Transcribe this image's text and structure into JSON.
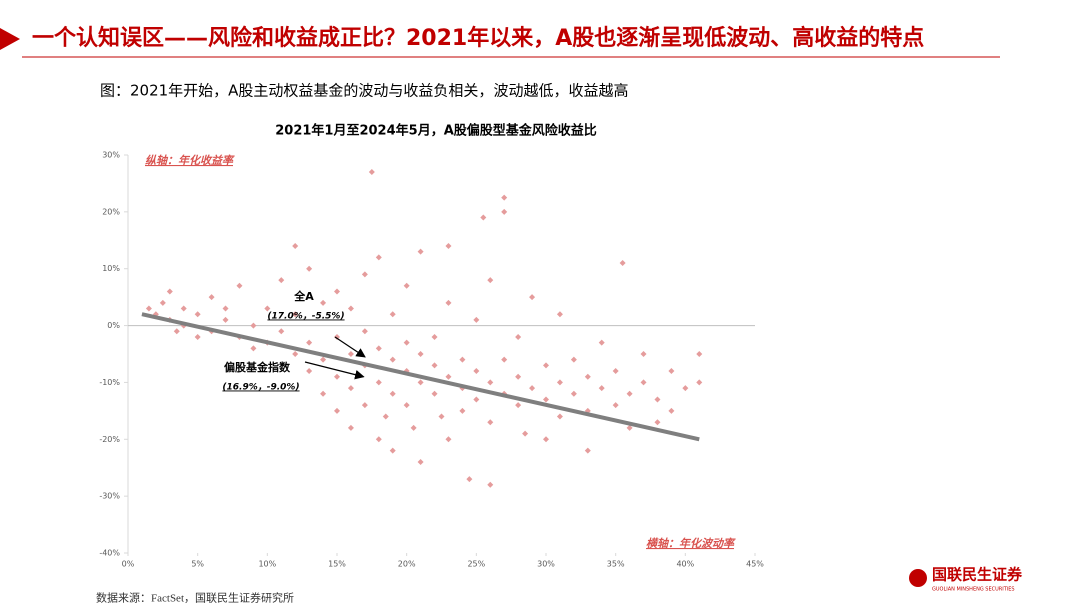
{
  "header": {
    "title": "一个认知误区——风险和收益成正比？2021年以来，A股也逐渐呈现低波动、高收益的特点"
  },
  "subtitle": "图：2021年开始，A股主动权益基金的波动与收益负相关，波动越低，收益越高",
  "chart_data": {
    "type": "scatter",
    "title": "2021年1月至2024年5月，A股偏股型基金风险收益比",
    "y_label": "纵轴：年化收益率",
    "x_label": "横轴：年化波动率",
    "xlim": [
      0,
      45
    ],
    "ylim": [
      -40,
      30
    ],
    "xticks": [
      {
        "value": 0,
        "label": "0%"
      },
      {
        "value": 5,
        "label": "5%"
      },
      {
        "value": 10,
        "label": "10%"
      },
      {
        "value": 15,
        "label": "15%"
      },
      {
        "value": 20,
        "label": "20%"
      },
      {
        "value": 25,
        "label": "25%"
      },
      {
        "value": 30,
        "label": "30%"
      },
      {
        "value": 35,
        "label": "35%"
      },
      {
        "value": 40,
        "label": "40%"
      },
      {
        "value": 45,
        "label": "45%"
      }
    ],
    "yticks": [
      {
        "value": -40,
        "label": "-40%"
      },
      {
        "value": -30,
        "label": "-30%"
      },
      {
        "value": -20,
        "label": "-20%"
      },
      {
        "value": -10,
        "label": "-10%"
      },
      {
        "value": 0,
        "label": "0%"
      },
      {
        "value": 10,
        "label": "10%"
      },
      {
        "value": 20,
        "label": "20%"
      },
      {
        "value": 30,
        "label": "30%"
      }
    ],
    "color": "#e59c9c",
    "x": [
      1.5,
      2,
      2.5,
      3,
      3,
      3.5,
      4,
      4,
      5,
      5,
      6,
      6,
      7,
      7,
      8,
      8,
      9,
      9,
      10,
      10,
      11,
      11,
      12,
      12,
      12,
      13,
      13,
      13,
      14,
      14,
      14,
      15,
      15,
      15,
      15,
      16,
      16,
      16,
      16,
      17,
      17,
      17,
      17,
      17.5,
      18,
      18,
      18,
      18,
      18.5,
      19,
      19,
      19,
      19,
      20,
      20,
      20,
      20,
      20.5,
      21,
      21,
      21,
      21,
      22,
      22,
      22,
      22.5,
      23,
      23,
      23,
      23,
      24,
      24,
      24,
      24.5,
      25,
      25,
      25,
      25.5,
      26,
      26,
      26,
      26,
      27,
      27,
      27,
      27,
      28,
      28,
      28,
      28.5,
      29,
      29,
      30,
      30,
      30,
      31,
      31,
      31,
      32,
      32,
      33,
      33,
      33,
      34,
      34,
      35,
      35,
      35.5,
      36,
      36,
      37,
      37,
      38,
      38,
      39,
      39,
      40,
      41,
      41
    ],
    "values": [
      3,
      2,
      4,
      1,
      6,
      -1,
      3,
      0,
      2,
      -2,
      5,
      -1,
      1,
      3,
      -2,
      7,
      0,
      -4,
      3,
      -3,
      8,
      -1,
      14,
      -5,
      2,
      10,
      -3,
      -8,
      4,
      -6,
      -12,
      6,
      -2,
      -9,
      -15,
      -5,
      -11,
      -18,
      3,
      -7,
      -14,
      9,
      -1,
      27,
      -4,
      -10,
      -20,
      12,
      -16,
      -6,
      -12,
      2,
      -22,
      -8,
      -3,
      -14,
      7,
      -18,
      -10,
      -5,
      13,
      -24,
      -7,
      -12,
      -2,
      -16,
      -9,
      4,
      -20,
      14,
      -11,
      -6,
      -15,
      -27,
      -8,
      -13,
      1,
      19,
      -10,
      -17,
      8,
      -28,
      -12,
      -6,
      22.5,
      20,
      -14,
      -9,
      -2,
      -19,
      -11,
      5,
      -13,
      -7,
      -20,
      -10,
      -16,
      2,
      -12,
      -6,
      -15,
      -9,
      -22,
      -11,
      -3,
      -14,
      -8,
      11,
      -12,
      -18,
      -10,
      -5,
      -13,
      -17,
      -8,
      -15,
      -11,
      -5,
      -10
    ],
    "trend_line": {
      "color": "#7f7f7f",
      "x": [
        1,
        41
      ],
      "values": [
        2,
        -20
      ]
    },
    "annotations": [
      {
        "name": "全A",
        "label": "(17.0%，-5.5%)",
        "x": 17.0,
        "y": -5.5
      },
      {
        "name": "偏股基金指数",
        "label": "(16.9%，-9.0%)",
        "x": 16.9,
        "y": -9.0
      }
    ]
  },
  "source": "数据来源：FactSet，国联民生证券研究所",
  "logo": {
    "name": "国联民生证券",
    "english": "GUOLIAN MINSHENG SECURITIES"
  }
}
